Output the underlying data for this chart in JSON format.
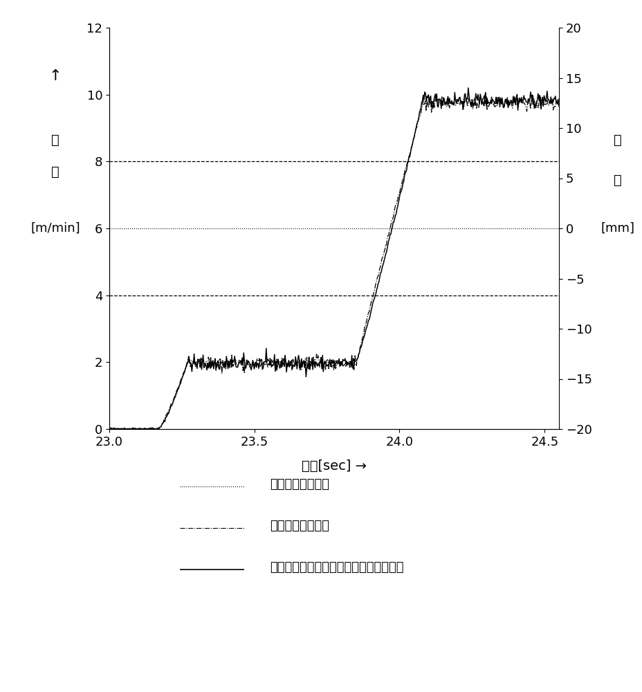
{
  "title": "",
  "xlabel": "时间[sec] →",
  "ylabel_left_line1": "速",
  "ylabel_left_line2": "度",
  "ylabel_left_line3": "[m/min]",
  "ylabel_right_line1": "位",
  "ylabel_right_line2": "移",
  "ylabel_right_line3": "[mm]",
  "xlim": [
    23.0,
    24.55
  ],
  "ylim_left": [
    0,
    12
  ],
  "ylim_right": [
    -20,
    20
  ],
  "xticks": [
    23.0,
    23.5,
    24.0,
    24.5
  ],
  "yticks_left": [
    0,
    2,
    4,
    6,
    8,
    10,
    12
  ],
  "yticks_right": [
    -20,
    -15,
    -10,
    -5,
    0,
    5,
    10,
    15,
    20
  ],
  "hlines_dashed": [
    4,
    8
  ],
  "background_color": "#ffffff",
  "line_color": "#000000",
  "dotted_line_value": 6.0,
  "legend_label_dotted": "：松紧调节辊位移",
  "legend_label_dashdot": "：层叠光学膜速度",
  "legend_label_solid": "：内进给速度（外进给速度或贴合速度）",
  "phase1_end": 23.17,
  "phase2_end": 23.27,
  "phase3_end": 23.85,
  "phase4_end": 24.08,
  "v_low": 2.0,
  "v_high": 9.85,
  "noise_flat1": 0.12,
  "noise_flat2": 0.12,
  "noise_ramp": 0.03
}
